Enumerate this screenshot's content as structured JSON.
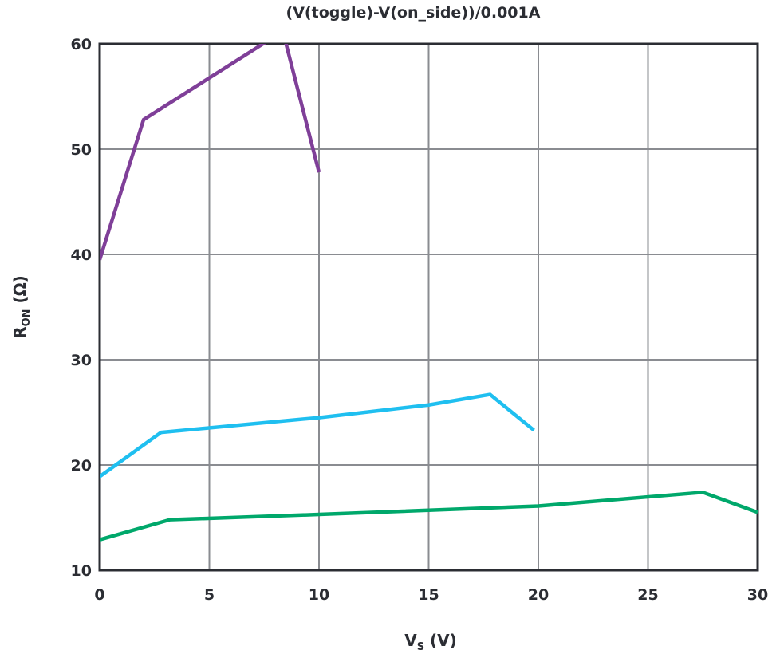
{
  "chart_data": {
    "type": "line",
    "title": "(V(toggle)-V(on_side))/0.001A",
    "xlabel": {
      "main": "V",
      "sub": "S",
      "unit": " (V)"
    },
    "ylabel": {
      "main": "R",
      "sub": "ON",
      "unit": " (Ω)"
    },
    "xlim": [
      0,
      30
    ],
    "ylim": [
      10,
      60
    ],
    "xticks": [
      0,
      5,
      10,
      15,
      20,
      25,
      30
    ],
    "yticks": [
      10,
      20,
      30,
      40,
      50,
      60
    ],
    "grid": true,
    "series": [
      {
        "color": "#7f3f98",
        "points": [
          [
            0,
            39.5
          ],
          [
            2.0,
            52.8
          ],
          [
            8.35,
            61.2
          ],
          [
            10,
            47.8
          ]
        ]
      },
      {
        "color": "#1fbff0",
        "points": [
          [
            0,
            18.9
          ],
          [
            2.8,
            23.1
          ],
          [
            10,
            24.5
          ],
          [
            15,
            25.7
          ],
          [
            17.8,
            26.7
          ],
          [
            19.8,
            23.3
          ]
        ]
      },
      {
        "color": "#00a86b",
        "points": [
          [
            0,
            12.9
          ],
          [
            3.2,
            14.8
          ],
          [
            10,
            15.3
          ],
          [
            20,
            16.1
          ],
          [
            27.5,
            17.4
          ],
          [
            30,
            15.5
          ]
        ]
      }
    ]
  }
}
